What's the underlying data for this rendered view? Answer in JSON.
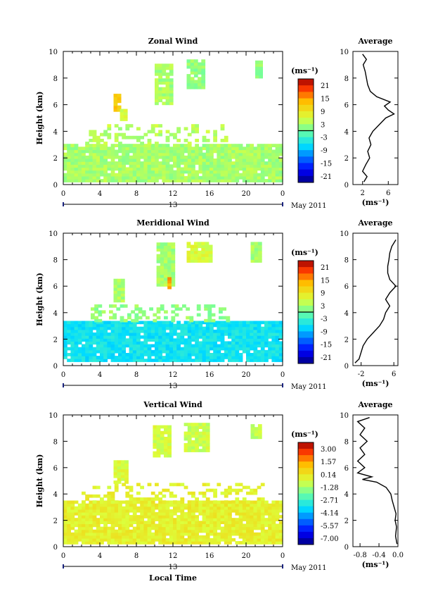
{
  "chart_data": [
    {
      "type": "heatmap",
      "title": "Zonal Wind",
      "xlabel": "",
      "ylabel": "Height (km)",
      "xlim": [
        0,
        24
      ],
      "ylim": [
        0,
        10
      ],
      "x_ticks": [
        "0",
        "4",
        "8",
        "12",
        "16",
        "20",
        "0"
      ],
      "y_ticks": [
        "0",
        "2",
        "4",
        "6",
        "8",
        "10"
      ],
      "date_tick": "13",
      "date_label": "May 2011",
      "colorbar": {
        "unit": "(ms⁻¹)",
        "ticks": [
          "21",
          "15",
          "9",
          "3",
          "-3",
          "-9",
          "-15",
          "-21"
        ],
        "range": [
          -24,
          24
        ],
        "zero_line": true
      },
      "regions": [
        {
          "t": [
            0,
            24
          ],
          "h": [
            0.2,
            3.0
          ],
          "v": 3
        },
        {
          "t": [
            2,
            18
          ],
          "h": [
            3.0,
            4.5
          ],
          "v": 4,
          "sparse": true
        },
        {
          "t": [
            5.5,
            6.2
          ],
          "h": [
            5.5,
            6.8
          ],
          "v": 12
        },
        {
          "t": [
            6.2,
            6.8
          ],
          "h": [
            4.8,
            5.6
          ],
          "v": 6
        },
        {
          "t": [
            10,
            12
          ],
          "h": [
            6.0,
            9.0
          ],
          "v": 3
        },
        {
          "t": [
            13.5,
            15.5
          ],
          "h": [
            7.2,
            9.2
          ],
          "v": 2
        },
        {
          "t": [
            21,
            21.8
          ],
          "h": [
            8.0,
            9.2
          ],
          "v": 2
        }
      ],
      "average_profile": {
        "title": "Average",
        "x_ticks": [
          "2",
          "6"
        ],
        "xlim": [
          0.5,
          7.5
        ],
        "xlabel": "(ms⁻¹)",
        "points": [
          [
            2.2,
            0.2
          ],
          [
            2.7,
            0.6
          ],
          [
            2.0,
            1.0
          ],
          [
            2.5,
            1.5
          ],
          [
            3.1,
            2.0
          ],
          [
            2.8,
            2.5
          ],
          [
            3.3,
            3.0
          ],
          [
            3.0,
            3.5
          ],
          [
            3.6,
            4.0
          ],
          [
            4.6,
            4.5
          ],
          [
            5.6,
            5.0
          ],
          [
            6.9,
            5.3
          ],
          [
            6.0,
            5.6
          ],
          [
            5.4,
            5.9
          ],
          [
            6.3,
            6.2
          ],
          [
            4.2,
            6.6
          ],
          [
            3.2,
            7.0
          ],
          [
            2.8,
            7.5
          ],
          [
            2.6,
            8.0
          ],
          [
            2.4,
            8.5
          ],
          [
            2.1,
            9.0
          ],
          [
            2.6,
            9.4
          ],
          [
            2.0,
            9.8
          ]
        ]
      }
    },
    {
      "type": "heatmap",
      "title": "Meridional Wind",
      "xlabel": "",
      "ylabel": "Height (km)",
      "xlim": [
        0,
        24
      ],
      "ylim": [
        0,
        10
      ],
      "x_ticks": [
        "0",
        "4",
        "8",
        "12",
        "16",
        "20",
        "0"
      ],
      "y_ticks": [
        "0",
        "2",
        "4",
        "6",
        "8",
        "10"
      ],
      "date_tick": "13",
      "date_label": "May 2011",
      "colorbar": {
        "unit": "(ms⁻¹)",
        "ticks": [
          "21",
          "15",
          "9",
          "3",
          "-3",
          "-9",
          "-15",
          "-21"
        ],
        "range": [
          -24,
          24
        ],
        "zero_line": true
      },
      "regions": [
        {
          "t": [
            0,
            24
          ],
          "h": [
            0.3,
            3.3
          ],
          "v": -6
        },
        {
          "t": [
            3,
            18
          ],
          "h": [
            3.3,
            4.5
          ],
          "v": 2,
          "sparse": true
        },
        {
          "t": [
            5.5,
            6.5
          ],
          "h": [
            4.8,
            6.5
          ],
          "v": 3
        },
        {
          "t": [
            10.2,
            12
          ],
          "h": [
            6.0,
            9.2
          ],
          "v": 3
        },
        {
          "t": [
            11.4,
            11.8
          ],
          "h": [
            5.8,
            6.5
          ],
          "v": 14
        },
        {
          "t": [
            13.5,
            16
          ],
          "h": [
            7.8,
            9.2
          ],
          "v": 6
        },
        {
          "t": [
            20.5,
            21.5
          ],
          "h": [
            7.8,
            9.2
          ],
          "v": 3
        }
      ],
      "average_profile": {
        "title": "Average",
        "x_ticks": [
          "-2",
          "6"
        ],
        "xlim": [
          -4,
          7
        ],
        "xlabel": "(ms⁻¹)",
        "points": [
          [
            -3.5,
            0.2
          ],
          [
            -2.5,
            0.5
          ],
          [
            -2.0,
            1.0
          ],
          [
            -1.5,
            1.5
          ],
          [
            -0.5,
            2.0
          ],
          [
            1.0,
            2.5
          ],
          [
            2.5,
            3.0
          ],
          [
            3.5,
            3.5
          ],
          [
            4.0,
            4.0
          ],
          [
            5.0,
            4.5
          ],
          [
            4.0,
            5.0
          ],
          [
            5.0,
            5.5
          ],
          [
            6.5,
            6.0
          ],
          [
            5.0,
            6.5
          ],
          [
            4.5,
            7.0
          ],
          [
            4.5,
            7.5
          ],
          [
            4.8,
            8.0
          ],
          [
            5.0,
            8.5
          ],
          [
            5.5,
            9.0
          ],
          [
            6.5,
            9.5
          ]
        ]
      }
    },
    {
      "type": "heatmap",
      "title": "Vertical Wind",
      "xlabel": "Local Time",
      "ylabel": "Height (km)",
      "xlim": [
        0,
        24
      ],
      "ylim": [
        0,
        10
      ],
      "x_ticks": [
        "0",
        "4",
        "8",
        "12",
        "16",
        "20",
        "0"
      ],
      "y_ticks": [
        "0",
        "2",
        "4",
        "6",
        "8",
        "10"
      ],
      "date_tick": "13",
      "date_label": "May 2011",
      "colorbar": {
        "unit": "(ms⁻¹)",
        "ticks": [
          "3.00",
          "1.57",
          "0.14",
          "-1.28",
          "-2.71",
          "-4.14",
          "-5.57",
          "-7.00"
        ],
        "range": [
          -7.7,
          3.7
        ],
        "zero_line": false
      },
      "regions": [
        {
          "t": [
            0,
            24
          ],
          "h": [
            0.2,
            3.3
          ],
          "v": -0.2
        },
        {
          "t": [
            2,
            22
          ],
          "h": [
            3.3,
            4.7
          ],
          "v": -0.3,
          "sparse": true
        },
        {
          "t": [
            5.5,
            7
          ],
          "h": [
            4.8,
            6.5
          ],
          "v": -0.6
        },
        {
          "t": [
            9.8,
            11.8
          ],
          "h": [
            6.8,
            9.2
          ],
          "v": -0.7
        },
        {
          "t": [
            13.2,
            15.8
          ],
          "h": [
            7.2,
            9.2
          ],
          "v": -0.8
        },
        {
          "t": [
            20.5,
            21.5
          ],
          "h": [
            8.2,
            9.3
          ],
          "v": -1.0
        }
      ],
      "average_profile": {
        "title": "Average",
        "x_ticks": [
          "-0.8",
          "-0.4",
          "0.0"
        ],
        "xlim": [
          -0.95,
          0.0
        ],
        "xlabel": "(ms⁻¹)",
        "points": [
          [
            -0.02,
            0.2
          ],
          [
            -0.05,
            0.8
          ],
          [
            -0.03,
            1.5
          ],
          [
            -0.06,
            2.0
          ],
          [
            -0.04,
            2.5
          ],
          [
            -0.08,
            3.0
          ],
          [
            -0.12,
            3.5
          ],
          [
            -0.15,
            4.0
          ],
          [
            -0.25,
            4.5
          ],
          [
            -0.45,
            4.9
          ],
          [
            -0.75,
            5.1
          ],
          [
            -0.55,
            5.3
          ],
          [
            -0.85,
            5.6
          ],
          [
            -0.7,
            6.0
          ],
          [
            -0.85,
            6.5
          ],
          [
            -0.7,
            7.0
          ],
          [
            -0.8,
            7.5
          ],
          [
            -0.65,
            8.0
          ],
          [
            -0.8,
            8.5
          ],
          [
            -0.7,
            9.0
          ],
          [
            -0.85,
            9.5
          ],
          [
            -0.6,
            9.8
          ]
        ]
      }
    }
  ]
}
